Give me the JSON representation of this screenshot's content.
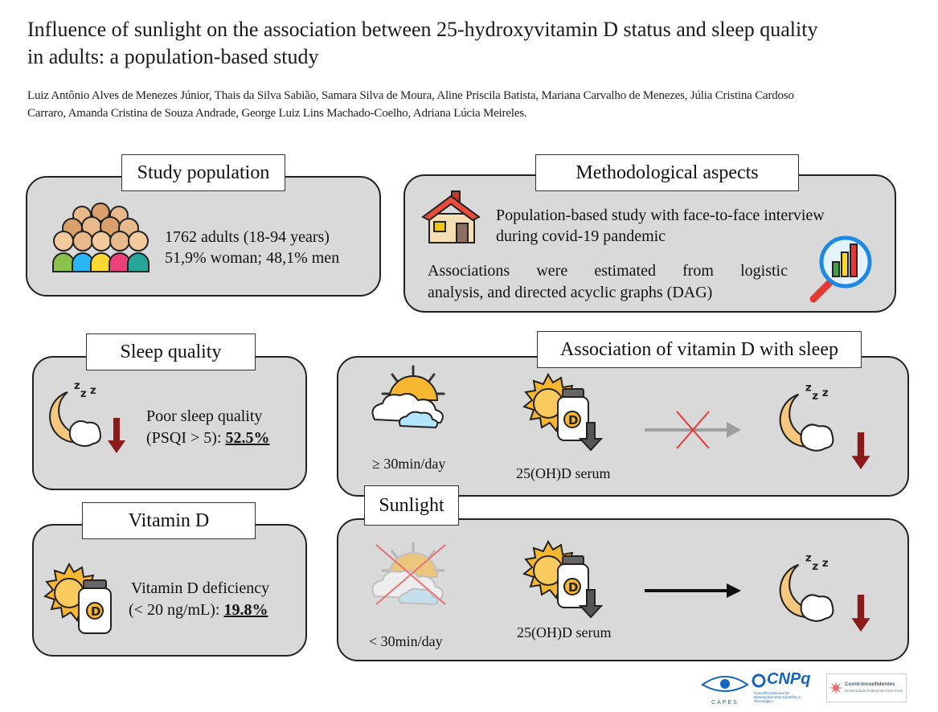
{
  "header": {
    "title_line1": "Influence of sunlight on the association  between 25-hydroxyvitamin  D status and sleep quality",
    "title_line2": "in adults:  a population-based  study",
    "authors_line1": "Luiz Antônio Alves de Menezes Júnior, Thais da Silva Sabião, Samara Silva de Moura, Aline Priscila Batista, Mariana Carvalho de Menezes, Júlia Cristina Cardoso",
    "authors_line2": "Carraro, Amanda Cristina de Souza Andrade, George Luiz Lins Machado-Coelho, Adriana Lúcia Meireles."
  },
  "study_population": {
    "label": "Study population",
    "line1": "1762 adults (18-94 years)",
    "line2": "51,9% woman; 48,1% men"
  },
  "methodological": {
    "label": "Methodological aspects",
    "line1": "Population-based study with face-to-face interview",
    "line2": "during covid-19 pandemic",
    "line3": "Associations  were  estimated  from  logistic",
    "line4": "analysis, and directed acyclic graphs (DAG)"
  },
  "sleep_quality": {
    "label": "Sleep quality",
    "line1": "Poor sleep quality",
    "line2_prefix": "(PSQI > 5): ",
    "value": "52.5%"
  },
  "vitamin_d": {
    "label": "Vitamin D",
    "line1": "Vitamin D deficiency",
    "line2_prefix": "(< 20 ng/mL): ",
    "value": "19.8%"
  },
  "association": {
    "label": "Association of vitamin D with sleep",
    "sun_caption": "≥ 30min/day",
    "serum_caption": "25(OH)D serum"
  },
  "sunlight": {
    "label": "Sunlight",
    "sun_caption": "< 30min/day",
    "serum_caption": "25(OH)D serum"
  },
  "logos": {
    "capes": "CAPES",
    "cnpq": "CNPq",
    "cnpq_sub": "Conselho Nacional de Desenvolvimento Científico e Tecnológico",
    "covid": "Covid-Inconfidentes",
    "covid_sub": "Universidade Federal de Ouro Preto"
  },
  "colors": {
    "panel_bg": "#d9d9d9",
    "arrow_red": "#8b1a1a",
    "sun": "#f7b731",
    "cross_red": "#e53935"
  },
  "icons": [
    "people-group-icon",
    "house-icon",
    "magnifier-chart-icon",
    "moon-sleep-icon",
    "down-arrow-icon",
    "sun-icon",
    "vitamin-bottle-icon",
    "sun-cloud-icon",
    "crossed-arrow-icon",
    "right-arrow-icon"
  ]
}
